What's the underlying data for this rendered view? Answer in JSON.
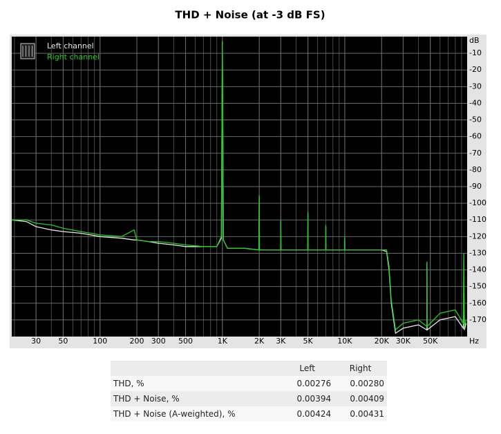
{
  "chart_data": {
    "type": "line",
    "title": "THD + Noise (at -3 dB FS)",
    "x_unit": "Hz",
    "y_unit": "dB",
    "log_x": true,
    "grid": true,
    "background": "#000000",
    "xlim": [
      19,
      100000
    ],
    "ylim": [
      -180,
      0
    ],
    "xticks": [
      30,
      50,
      100,
      200,
      300,
      500,
      {
        "value": 1000,
        "label": "1K"
      },
      {
        "value": 2000,
        "label": "2K"
      },
      {
        "value": 3000,
        "label": "3K"
      },
      {
        "value": 5000,
        "label": "5K"
      },
      {
        "value": 10000,
        "label": "10K"
      },
      {
        "value": 20000,
        "label": "20K"
      },
      {
        "value": 30000,
        "label": "30K"
      },
      {
        "value": 50000,
        "label": "50K"
      }
    ],
    "yticks": [
      -10,
      -20,
      -30,
      -40,
      -50,
      -60,
      -70,
      -80,
      -90,
      -100,
      -110,
      -120,
      -130,
      -140,
      -150,
      -160,
      -170
    ],
    "x": [
      19,
      25,
      30,
      40,
      50,
      70,
      100,
      150,
      190,
      200,
      250,
      300,
      400,
      500,
      700,
      900,
      980,
      1000,
      1020,
      1100,
      1500,
      1990,
      2000,
      2010,
      2500,
      2990,
      3000,
      3010,
      4000,
      4990,
      5000,
      5010,
      6990,
      7000,
      7010,
      9990,
      10000,
      10010,
      15000,
      20000,
      22000,
      23000,
      24000,
      26000,
      30000,
      40000,
      46900,
      47000,
      47100,
      60000,
      80000,
      93000,
      94000,
      95000,
      98000
    ],
    "series": [
      {
        "name": "Left channel",
        "color": "#e8e8e8",
        "values": [
          -110,
          -111,
          -114,
          -116,
          -117,
          -118,
          -120,
          -121,
          -122,
          -122,
          -123,
          -124,
          -125,
          -126,
          -126,
          -126,
          -121,
          -3,
          -122,
          -127,
          -127,
          -128,
          -96,
          -128,
          -128,
          -128,
          -111,
          -128,
          -128,
          -128,
          -106,
          -128,
          -128,
          -114,
          -128,
          -128,
          -121,
          -128,
          -128,
          -128,
          -129,
          -140,
          -160,
          -178,
          -175,
          -173,
          -176,
          -136,
          -176,
          -170,
          -168,
          -175,
          -150,
          -176,
          -172
        ]
      },
      {
        "name": "Right channel",
        "color": "#22cc22",
        "values": [
          -110,
          -110,
          -112,
          -113,
          -115,
          -117,
          -119,
          -120,
          -116,
          -122,
          -123,
          -123,
          -124,
          -125,
          -126,
          -126,
          -120,
          -3,
          -122,
          -127,
          -127,
          -128,
          -95,
          -128,
          -128,
          -128,
          -110,
          -128,
          -128,
          -128,
          -105,
          -128,
          -128,
          -113,
          -128,
          -128,
          -120,
          -128,
          -128,
          -128,
          -128,
          -138,
          -158,
          -176,
          -172,
          -170,
          -174,
          -135,
          -174,
          -166,
          -164,
          -172,
          -130,
          -174,
          -170
        ]
      }
    ]
  },
  "table": {
    "columns": [
      "Left",
      "Right"
    ],
    "rows": [
      [
        "THD, %",
        "0.00276",
        "0.00280"
      ],
      [
        "THD + Noise, %",
        "0.00394",
        "0.00409"
      ],
      [
        "THD + Noise (A-weighted), %",
        "0.00424",
        "0.00431"
      ]
    ]
  }
}
